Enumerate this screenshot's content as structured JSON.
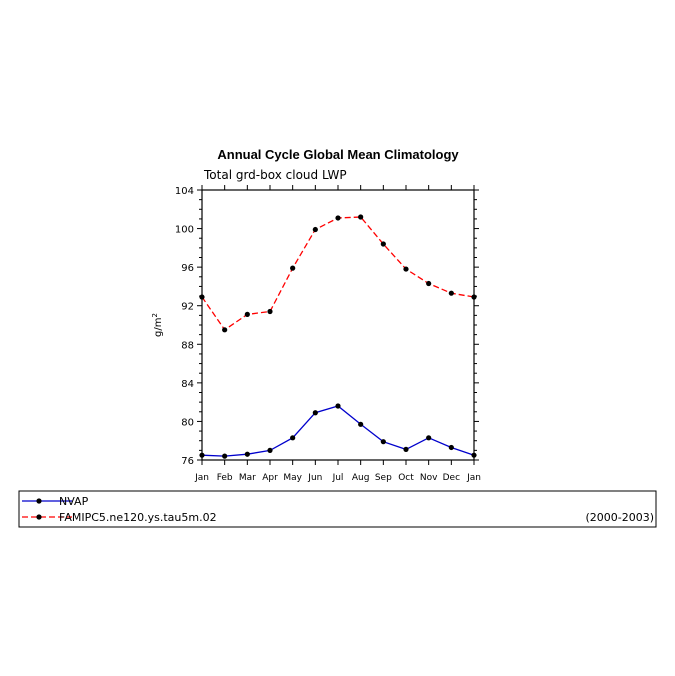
{
  "chart_data": {
    "type": "line",
    "title": "Annual Cycle Global Mean Climatology",
    "subtitle": "Total grd-box cloud LWP",
    "xlabel": "",
    "ylabel": "g/m",
    "ylabel_sup": "2",
    "categories": [
      "Jan",
      "Feb",
      "Mar",
      "Apr",
      "May",
      "Jun",
      "Jul",
      "Aug",
      "Sep",
      "Oct",
      "Nov",
      "Dec",
      "Jan"
    ],
    "ylim": [
      76,
      104
    ],
    "yticks": [
      76,
      80,
      84,
      88,
      92,
      96,
      100,
      104
    ],
    "series": [
      {
        "name": "NVAP",
        "color": "#0000cc",
        "dash": "solid",
        "values": [
          76.5,
          76.4,
          76.6,
          77.0,
          78.3,
          80.9,
          81.6,
          79.7,
          77.9,
          77.1,
          78.3,
          77.3,
          76.5
        ]
      },
      {
        "name": "FAMIPC5.ne120.ys.tau5m.02",
        "color": "#ff0000",
        "dash": "dashed",
        "values": [
          92.9,
          89.5,
          91.1,
          91.4,
          95.9,
          99.9,
          101.1,
          101.2,
          98.4,
          95.8,
          94.3,
          93.3,
          92.9
        ]
      }
    ],
    "legend_note": "(2000-2003)",
    "legend_position": "bottom"
  }
}
